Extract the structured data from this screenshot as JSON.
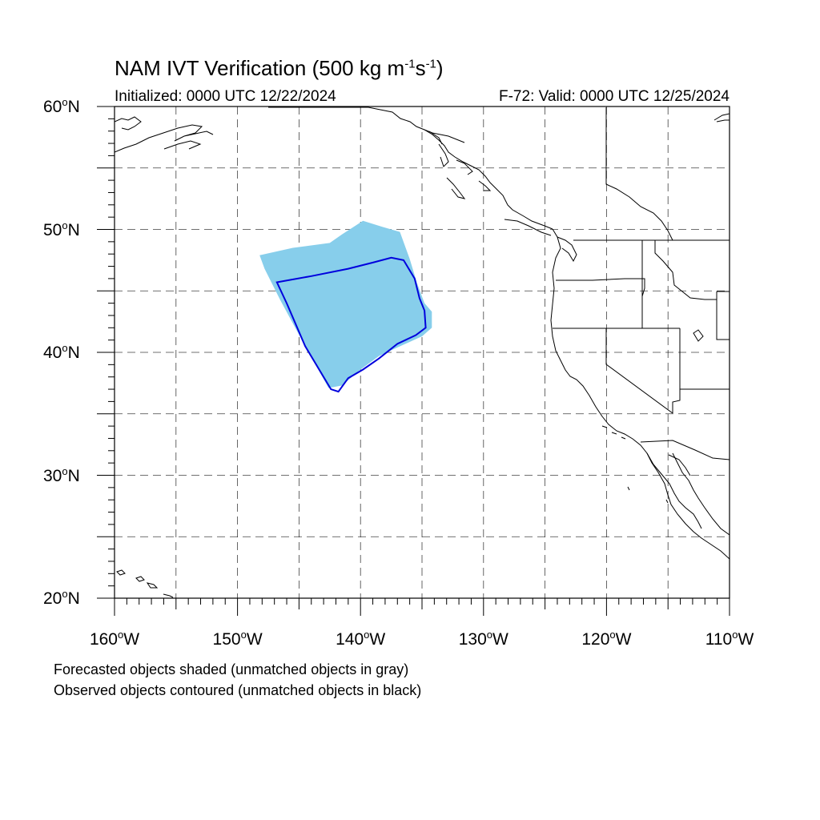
{
  "title": {
    "main": "NAM IVT Verification (500 kg m",
    "exp1": "-1",
    "mid": "s",
    "exp2": "-1",
    "end": ")"
  },
  "initialized": "Initialized: 0000 UTC 12/22/2024",
  "valid": "F-72: Valid: 0000 UTC 12/25/2024",
  "map": {
    "lon_range": [
      -160,
      -110
    ],
    "lat_range": [
      20,
      60
    ],
    "grid": true,
    "forecast_fill_color": "#87ceeb",
    "observed_contour_color": "#0000dd",
    "y_ticks": [
      {
        "value": 60,
        "label": "60",
        "unit": "N"
      },
      {
        "value": 50,
        "label": "50",
        "unit": "N"
      },
      {
        "value": 40,
        "label": "40",
        "unit": "N"
      },
      {
        "value": 30,
        "label": "30",
        "unit": "N"
      },
      {
        "value": 20,
        "label": "20",
        "unit": "N"
      }
    ],
    "x_ticks": [
      {
        "value": -160,
        "label": "160",
        "unit": "W"
      },
      {
        "value": -150,
        "label": "150",
        "unit": "W"
      },
      {
        "value": -140,
        "label": "140",
        "unit": "W"
      },
      {
        "value": -130,
        "label": "130",
        "unit": "W"
      },
      {
        "value": -120,
        "label": "120",
        "unit": "W"
      },
      {
        "value": -110,
        "label": "110",
        "unit": "W"
      }
    ],
    "forecast_object": [
      [
        -148.2,
        47.9
      ],
      [
        -145.5,
        48.5
      ],
      [
        -142.5,
        48.9
      ],
      [
        -141.5,
        49.6
      ],
      [
        -139.8,
        50.7
      ],
      [
        -138.2,
        50.2
      ],
      [
        -136.8,
        49.8
      ],
      [
        -136.0,
        47.6
      ],
      [
        -135.4,
        45.6
      ],
      [
        -134.8,
        44.0
      ],
      [
        -134.2,
        43.3
      ],
      [
        -134.2,
        42.0
      ],
      [
        -135.0,
        41.3
      ],
      [
        -137.0,
        40.4
      ],
      [
        -138.5,
        39.7
      ],
      [
        -140.0,
        38.6
      ],
      [
        -141.5,
        37.3
      ],
      [
        -142.6,
        37.1
      ],
      [
        -144.5,
        40.5
      ],
      [
        -146.5,
        44.2
      ],
      [
        -147.8,
        46.8
      ]
    ],
    "observed_contour": [
      [
        -146.8,
        45.7
      ],
      [
        -144.0,
        46.2
      ],
      [
        -141.0,
        46.8
      ],
      [
        -139.0,
        47.3
      ],
      [
        -137.5,
        47.7
      ],
      [
        -136.5,
        47.5
      ],
      [
        -135.6,
        46.0
      ],
      [
        -135.2,
        44.4
      ],
      [
        -134.8,
        43.4
      ],
      [
        -134.7,
        42.0
      ],
      [
        -135.5,
        41.4
      ],
      [
        -137.0,
        40.7
      ],
      [
        -138.5,
        39.5
      ],
      [
        -139.8,
        38.6
      ],
      [
        -141.0,
        37.9
      ],
      [
        -141.8,
        36.8
      ],
      [
        -142.4,
        37.0
      ],
      [
        -144.5,
        40.5
      ],
      [
        -146.0,
        44.0
      ]
    ]
  },
  "notes": [
    "Forecasted objects shaded (unmatched objects in gray)",
    "Observed objects contoured (unmatched objects in black)"
  ]
}
